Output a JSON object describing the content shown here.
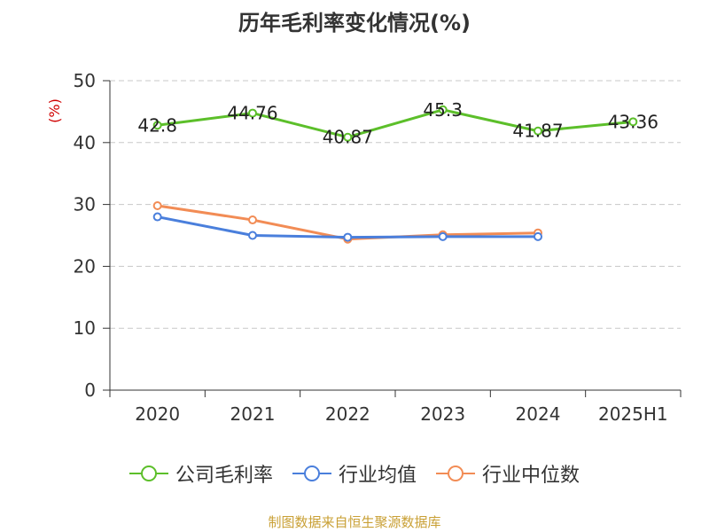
{
  "title": "历年毛利率变化情况(%)",
  "footer": "制图数据来自恒生聚源数据库",
  "chart_data": {
    "type": "line",
    "title": "历年毛利率变化情况(%)",
    "ylabel": "(%)",
    "xlabel": "",
    "categories": [
      "2020",
      "2021",
      "2022",
      "2023",
      "2024",
      "2025H1"
    ],
    "ylim": [
      0,
      50
    ],
    "yticks": [
      0,
      10,
      20,
      30,
      40,
      50
    ],
    "grid": true,
    "legend_position": "bottom",
    "series": [
      {
        "name": "公司毛利率",
        "color": "#5cbf2a",
        "values": [
          42.8,
          44.76,
          40.87,
          45.3,
          41.87,
          43.36
        ],
        "labels": [
          "42.8",
          "44.76",
          "40.87",
          "45.3",
          "41.87",
          "43.36"
        ]
      },
      {
        "name": "行业均值",
        "color": "#4a7fdc",
        "values": [
          28.0,
          25.0,
          24.7,
          24.8,
          24.8,
          null
        ]
      },
      {
        "name": "行业中位数",
        "color": "#f28c55",
        "values": [
          29.8,
          27.5,
          24.4,
          25.1,
          25.4,
          null
        ]
      }
    ]
  }
}
